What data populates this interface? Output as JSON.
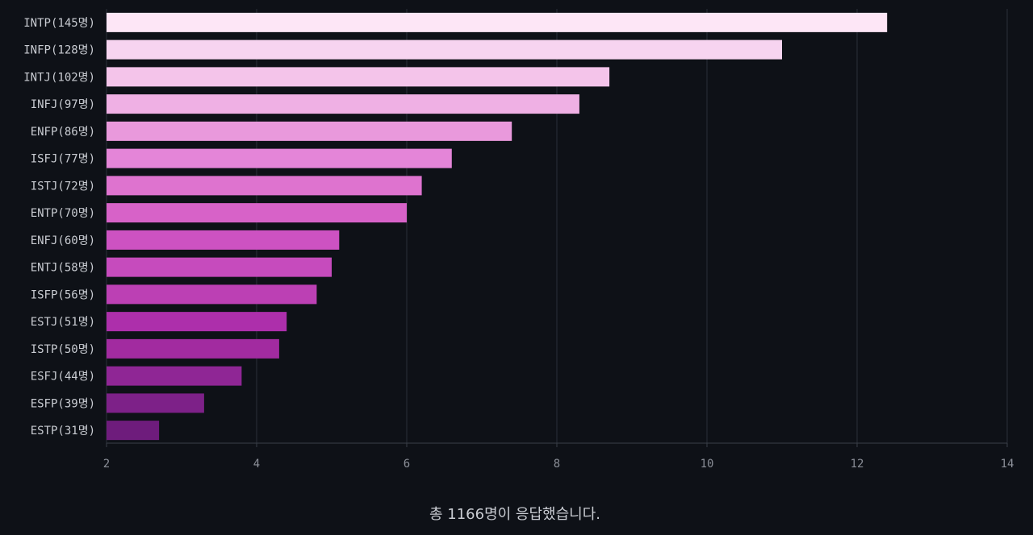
{
  "chart_data": {
    "type": "bar",
    "orientation": "horizontal",
    "categories": [
      "INTP(145명)",
      "INFP(128명)",
      "INTJ(102명)",
      "INFJ(97명)",
      "ENFP(86명)",
      "ISFJ(77명)",
      "ISTJ(72명)",
      "ENTP(70명)",
      "ENFJ(60명)",
      "ENTJ(58명)",
      "ISFP(56명)",
      "ESTJ(51명)",
      "ISTP(50명)",
      "ESFJ(44명)",
      "ESFP(39명)",
      "ESTP(31명)"
    ],
    "values": [
      12.4,
      11.0,
      8.7,
      8.3,
      7.4,
      6.6,
      6.2,
      6.0,
      5.1,
      5.0,
      4.8,
      4.4,
      4.3,
      3.8,
      3.3,
      2.7
    ],
    "colors": [
      "#fde6f6",
      "#f7d4f0",
      "#f4c4ea",
      "#efb0e4",
      "#e999dc",
      "#e485d8",
      "#de73cf",
      "#d762c8",
      "#cd52c2",
      "#c64bbd",
      "#bc40b4",
      "#ad2fab",
      "#a22ba0",
      "#8f2695",
      "#7d2188",
      "#6e1c7c"
    ],
    "xlim": [
      2,
      14
    ],
    "xticks": [
      "2",
      "4",
      "6",
      "8",
      "10",
      "12",
      "14"
    ],
    "grid": true,
    "title": "",
    "xlabel": "",
    "ylabel": ""
  },
  "caption": "총 1166명이 응답했습니다."
}
